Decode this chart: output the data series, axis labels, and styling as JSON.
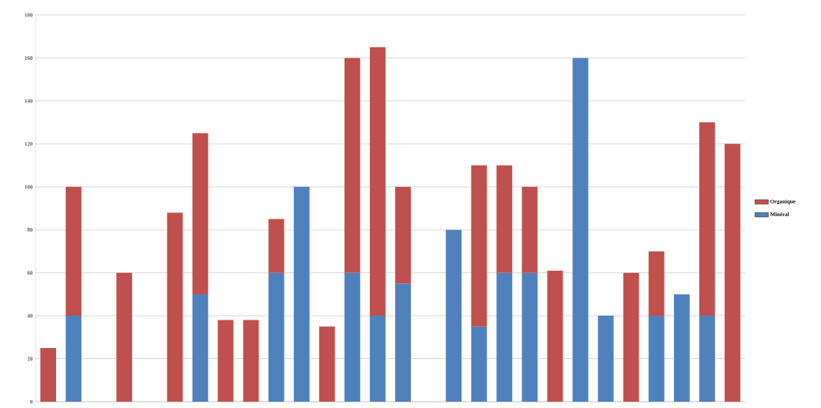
{
  "chart_data": {
    "type": "bar",
    "stacked": true,
    "categories": [
      null,
      null,
      null,
      null,
      null,
      null,
      null,
      null,
      null,
      null,
      null,
      null,
      null,
      null,
      null,
      null,
      null,
      null,
      null,
      null,
      null,
      null,
      null,
      null,
      null,
      null,
      null,
      null
    ],
    "series": [
      {
        "name": "Minéral",
        "color": "#4f81bd",
        "values": [
          null,
          40,
          null,
          null,
          null,
          null,
          50,
          null,
          null,
          60,
          100,
          null,
          60,
          40,
          55,
          null,
          80,
          35,
          60,
          60,
          null,
          160,
          40,
          null,
          40,
          50,
          40,
          null
        ]
      },
      {
        "name": "Organique",
        "color": "#c0504d",
        "values": [
          25,
          60,
          null,
          60,
          null,
          88,
          75,
          38,
          38,
          25,
          null,
          35,
          100,
          125,
          45,
          null,
          null,
          75,
          50,
          40,
          61,
          null,
          null,
          60,
          30,
          null,
          90,
          120
        ]
      }
    ],
    "ylim": [
      0,
      180
    ],
    "yticks": [
      0,
      20,
      40,
      60,
      80,
      100,
      120,
      140,
      160,
      180
    ],
    "grid": "y",
    "legend": "right",
    "tick_labels": "y"
  }
}
